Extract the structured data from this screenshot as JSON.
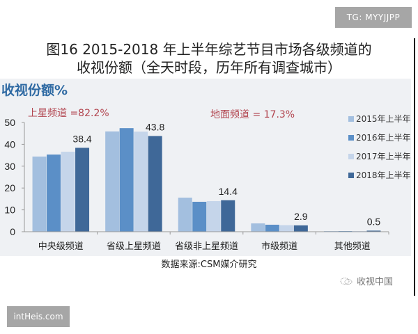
{
  "watermarks": {
    "top": "TG: MYYJJPP",
    "bottom": "intHeis.com"
  },
  "title": {
    "line1": "图16 2015-2018 年上半年综艺节目市场各级频道的",
    "line2": "收视份额（全天时段，历年所有调查城市）"
  },
  "annotations": {
    "satellite": "上星频道 =82.2%",
    "terrestrial": "地面频道 = 17.3%"
  },
  "footer": {
    "source": "数据来源:CSM媒介研究",
    "brand": "收视中国",
    "brand_icon": "wechat-logo-icon"
  },
  "colors": {
    "panel_bg": "#eff1f4",
    "title_label": "#2f6aa3",
    "annotation": "#b2454f",
    "series": [
      "#a3bfdf",
      "#5b8fc7",
      "#c5d5ea",
      "#3f6898"
    ]
  },
  "chart_data": {
    "type": "bar",
    "title": "图16 2015-2018 年上半年综艺节目市场各级频道的收视份额（全天时段，历年所有调查城市）",
    "xlabel": "",
    "ylabel": "收视份额%",
    "ylim": [
      0,
      50
    ],
    "yticks": [
      0,
      10,
      20,
      30,
      40,
      50
    ],
    "grid": false,
    "legend_position": "right",
    "categories": [
      "中央级频道",
      "省级上星频道",
      "省级非上星频道",
      "市级频道",
      "其他频道"
    ],
    "series": [
      {
        "name": "2015年上半年",
        "values": [
          34.4,
          45.9,
          15.6,
          3.8,
          0.3
        ]
      },
      {
        "name": "2016年上半年",
        "values": [
          35.3,
          47.4,
          13.7,
          3.2,
          0.3
        ]
      },
      {
        "name": "2017年上半年",
        "values": [
          36.6,
          45.8,
          14.0,
          3.0,
          0.3
        ]
      },
      {
        "name": "2018年上半年",
        "values": [
          38.4,
          43.8,
          14.4,
          2.9,
          0.5
        ]
      }
    ],
    "data_labels": [
      {
        "category": "中央级频道",
        "series": "2018年上半年",
        "text": "38.4"
      },
      {
        "category": "省级上星频道",
        "series": "2018年上半年",
        "text": "43.8"
      },
      {
        "category": "省级非上星频道",
        "series": "2018年上半年",
        "text": "14.4"
      },
      {
        "category": "市级频道",
        "series": "2018年上半年",
        "text": "2.9"
      },
      {
        "category": "其他频道",
        "series": "2018年上半年",
        "text": "0.5"
      }
    ],
    "annotations": [
      "上星频道 =82.2%",
      "地面频道 = 17.3%"
    ],
    "source": "数据来源:CSM媒介研究"
  }
}
